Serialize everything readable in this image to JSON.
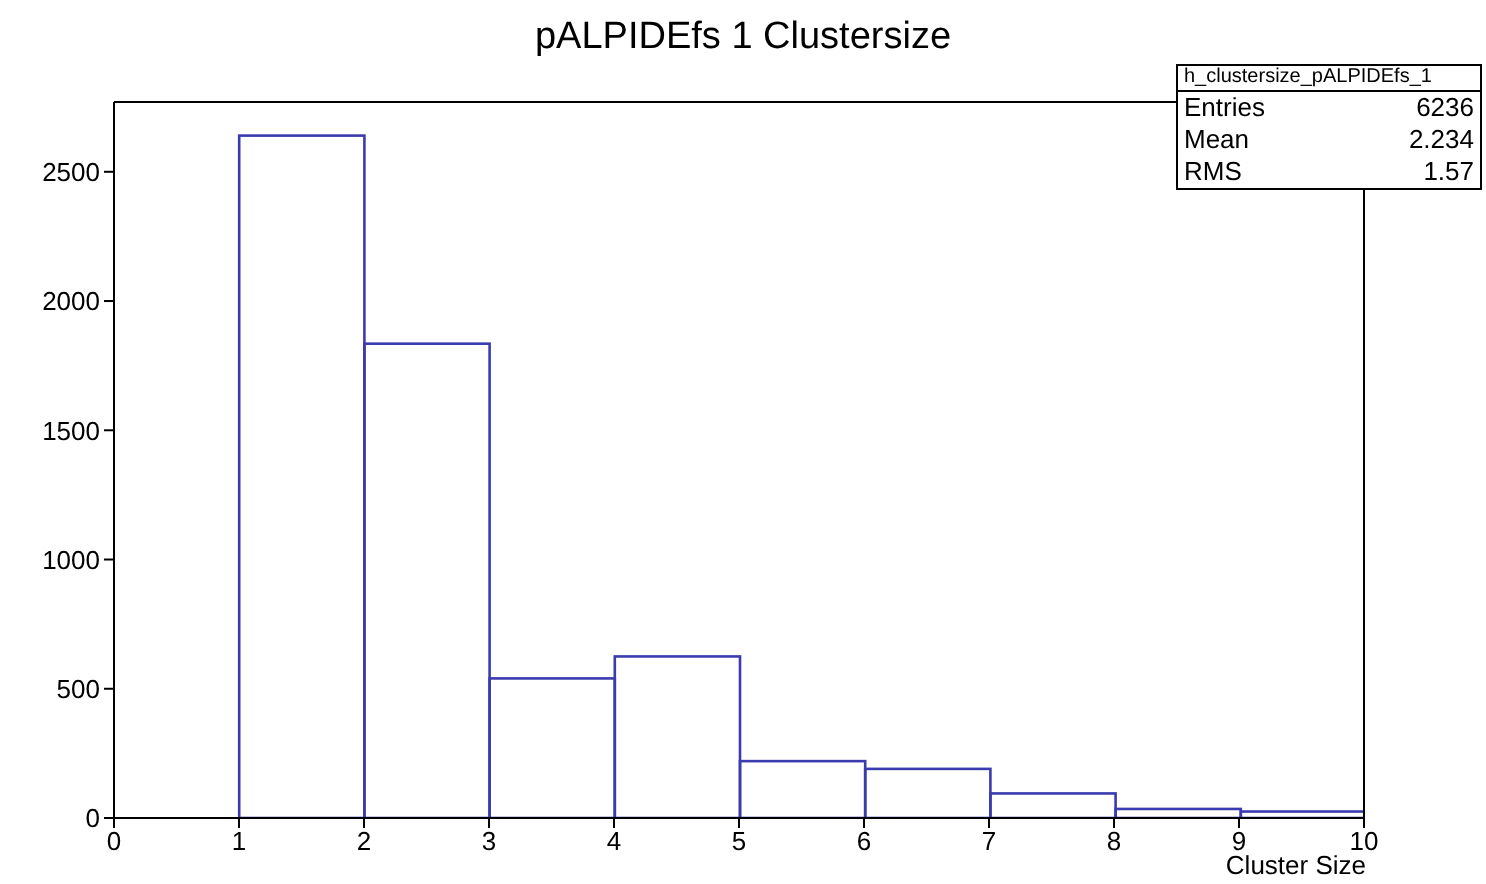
{
  "chart_data": {
    "type": "histogram",
    "title": "pALPIDEfs 1 Clustersize",
    "xlabel": "Cluster Size",
    "bins": [
      0,
      1,
      2,
      3,
      4,
      5,
      6,
      7,
      8,
      9,
      10
    ],
    "values": [
      0,
      2640,
      1835,
      540,
      625,
      220,
      190,
      95,
      35,
      25
    ],
    "color": "#3b3bb0",
    "xlim": [
      0,
      10
    ],
    "xticks": [
      0,
      1,
      2,
      3,
      4,
      5,
      6,
      7,
      8,
      9,
      10
    ],
    "ylim": [
      0,
      2770
    ],
    "yticks": [
      0,
      500,
      1000,
      1500,
      2000,
      2500
    ],
    "grid": false,
    "annotations": [
      "h_clustersize_pALPIDEfs_1",
      "Entries",
      "6236",
      "Mean",
      "2.234",
      "RMS",
      "1.57"
    ]
  }
}
